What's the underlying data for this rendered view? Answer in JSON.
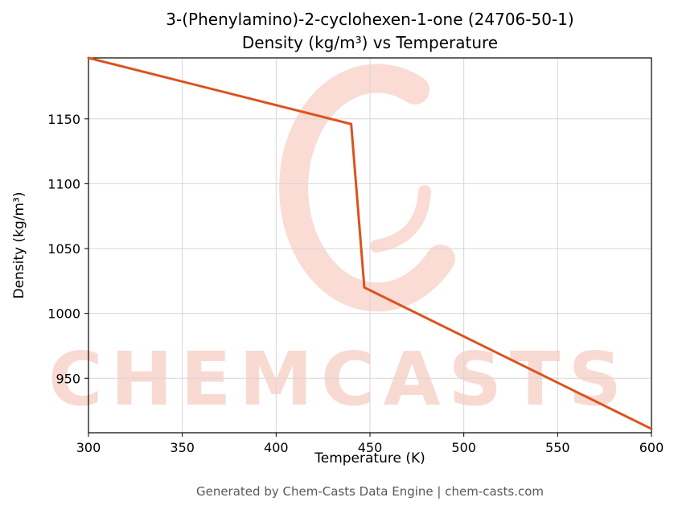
{
  "title": {
    "line1": "3-(Phenylamino)-2-cyclohexen-1-one (24706-50-1)",
    "line2": "Density (kg/m³) vs Temperature"
  },
  "watermark": {
    "text": "CHEMCASTS",
    "logo_color": "rgba(230,95,60,0.22)"
  },
  "footer": {
    "text": "Generated by Chem-Casts Data Engine | chem-casts.com"
  },
  "chart_data": {
    "type": "line",
    "title": "3-(Phenylamino)-2-cyclohexen-1-one (24706-50-1) Density (kg/m³) vs Temperature",
    "xlabel": "Temperature (K)",
    "ylabel": "Density (kg/m³)",
    "xlim": [
      300,
      600
    ],
    "ylim": [
      908,
      1197
    ],
    "xticks": [
      300,
      350,
      400,
      450,
      500,
      550,
      600
    ],
    "yticks": [
      950,
      1000,
      1050,
      1100,
      1150
    ],
    "grid": true,
    "grid_color": "#d6d6d6",
    "line_color": "#d9541f",
    "series": [
      {
        "name": "Density",
        "points": [
          [
            300,
            1197
          ],
          [
            440,
            1146
          ],
          [
            447,
            1020
          ],
          [
            600,
            911
          ]
        ]
      }
    ]
  }
}
